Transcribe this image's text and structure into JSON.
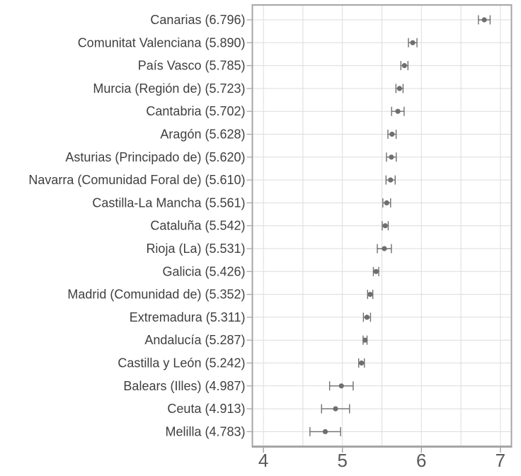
{
  "chart_data": {
    "type": "scatter",
    "subtype": "dot-with-error-bars",
    "orientation": "horizontal",
    "title": "",
    "xlabel": "",
    "ylabel": "",
    "xlim": [
      3.86,
      7.14
    ],
    "xtick_values": [
      4,
      5,
      6,
      7
    ],
    "xtick_labels": [
      "4",
      "5",
      "6",
      "7"
    ],
    "x_gridline_step": 0.5,
    "grid": true,
    "legend": "none",
    "points": [
      {
        "label": "Canarias (6.796)",
        "value": 6.796,
        "ci_low": 6.722,
        "ci_high": 6.87
      },
      {
        "label": "Comunitat Valenciana (5.890)",
        "value": 5.89,
        "ci_low": 5.836,
        "ci_high": 5.944
      },
      {
        "label": "País Vasco (5.785)",
        "value": 5.785,
        "ci_low": 5.74,
        "ci_high": 5.83
      },
      {
        "label": "Murcia (Región de) (5.723)",
        "value": 5.723,
        "ci_low": 5.678,
        "ci_high": 5.768
      },
      {
        "label": "Cantabria (5.702)",
        "value": 5.702,
        "ci_low": 5.623,
        "ci_high": 5.781
      },
      {
        "label": "Aragón (5.628)",
        "value": 5.628,
        "ci_low": 5.576,
        "ci_high": 5.68
      },
      {
        "label": "Asturias (Principado de) (5.620)",
        "value": 5.62,
        "ci_low": 5.558,
        "ci_high": 5.682
      },
      {
        "label": "Navarra (Comunidad Foral de) (5.610)",
        "value": 5.61,
        "ci_low": 5.552,
        "ci_high": 5.668
      },
      {
        "label": "Castilla-La Mancha (5.561)",
        "value": 5.561,
        "ci_low": 5.512,
        "ci_high": 5.61
      },
      {
        "label": "Cataluña (5.542)",
        "value": 5.542,
        "ci_low": 5.504,
        "ci_high": 5.58
      },
      {
        "label": "Rioja (La) (5.531)",
        "value": 5.531,
        "ci_low": 5.442,
        "ci_high": 5.62
      },
      {
        "label": "Galicia (5.426)",
        "value": 5.426,
        "ci_low": 5.392,
        "ci_high": 5.46
      },
      {
        "label": "Madrid (Comunidad de) (5.352)",
        "value": 5.352,
        "ci_low": 5.319,
        "ci_high": 5.385
      },
      {
        "label": "Extremadura (5.311)",
        "value": 5.311,
        "ci_low": 5.266,
        "ci_high": 5.356
      },
      {
        "label": "Andalucía (5.287)",
        "value": 5.287,
        "ci_low": 5.262,
        "ci_high": 5.312
      },
      {
        "label": "Castilla y León (5.242)",
        "value": 5.242,
        "ci_low": 5.206,
        "ci_high": 5.278
      },
      {
        "label": "Balears (Illes) (4.987)",
        "value": 4.987,
        "ci_low": 4.838,
        "ci_high": 5.136
      },
      {
        "label": "Ceuta (4.913)",
        "value": 4.913,
        "ci_low": 4.736,
        "ci_high": 5.09
      },
      {
        "label": "Melilla (4.783)",
        "value": 4.783,
        "ci_low": 4.589,
        "ci_high": 4.977
      }
    ],
    "colors": {
      "background": "#ffffff",
      "point": "#6e6e6e",
      "error_bar": "#6f6f6f",
      "gridline": "#dcdcdc",
      "panel_border": "#a5a5a5",
      "tick_mark": "#a5a5a5",
      "category_label": "#3f3f3f",
      "axis_tick_label": "#595959"
    }
  }
}
